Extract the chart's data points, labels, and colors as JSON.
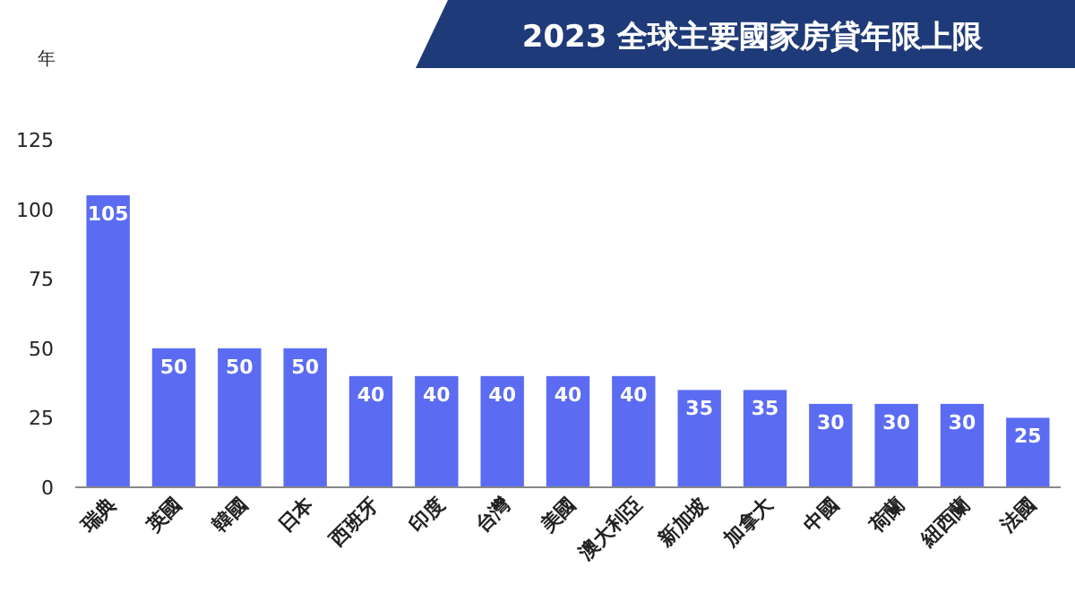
{
  "chart_data": {
    "type": "bar",
    "title": "2023 全球主要國家房貸年限上限",
    "ylabel": "年",
    "categories": [
      "瑞典",
      "英國",
      "韓國",
      "日本",
      "西班牙",
      "印度",
      "台灣",
      "美國",
      "澳大利亞",
      "新加坡",
      "加拿大",
      "中國",
      "荷蘭",
      "紐西蘭",
      "法國"
    ],
    "values": [
      105,
      50,
      50,
      50,
      40,
      40,
      40,
      40,
      40,
      35,
      35,
      30,
      30,
      30,
      25
    ],
    "color": "#5b6cf2",
    "ylim": [
      0,
      125
    ],
    "yticks": [
      0,
      25,
      50,
      75,
      100,
      125
    ],
    "data_labels": true
  }
}
